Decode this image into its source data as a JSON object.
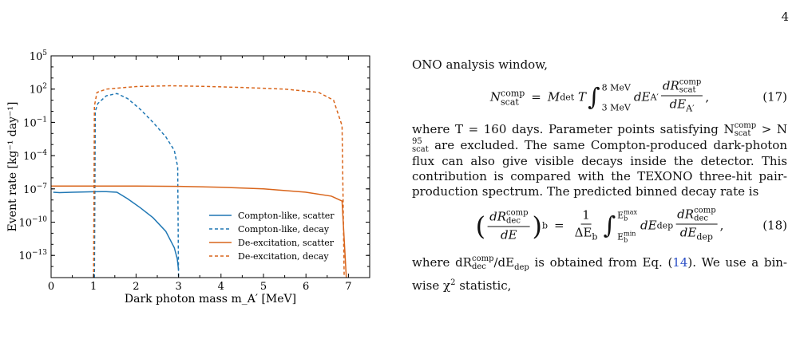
{
  "page_number": "4",
  "chart_data": {
    "type": "line",
    "title": "",
    "xlabel": "Dark photon mass m_A′ [MeV]",
    "ylabel": "Event rate [kg⁻¹ day⁻¹]",
    "xlim": [
      0,
      7.5
    ],
    "ylim_log10": [
      -15,
      5
    ],
    "yscale": "log",
    "x_ticks": [
      "0",
      "1",
      "2",
      "3",
      "4",
      "5",
      "6",
      "7"
    ],
    "y_ticks": [
      {
        "base": "10",
        "exp": "5"
      },
      {
        "base": "10",
        "exp": "2"
      },
      {
        "base": "10",
        "exp": "−1"
      },
      {
        "base": "10",
        "exp": "−4"
      },
      {
        "base": "10",
        "exp": "−7"
      },
      {
        "base": "10",
        "exp": "−10"
      },
      {
        "base": "10",
        "exp": "−13"
      }
    ],
    "legend_position": "lower-right",
    "series": [
      {
        "name": "Compton-like, scatter",
        "color": "#1f77b4",
        "dash": "solid",
        "points": [
          [
            0.05,
            5e-08
          ],
          [
            0.2,
            4.6e-08
          ],
          [
            0.5,
            5e-08
          ],
          [
            1.0,
            5.5e-08
          ],
          [
            1.3,
            5.7e-08
          ],
          [
            1.55,
            5e-08
          ],
          [
            1.8,
            1.3e-08
          ],
          [
            2.1,
            2e-09
          ],
          [
            2.4,
            2.5e-10
          ],
          [
            2.7,
            1.5e-11
          ],
          [
            2.9,
            5e-13
          ],
          [
            2.97,
            5e-14
          ],
          [
            3.0,
            5e-15
          ]
        ]
      },
      {
        "name": "Compton-like, decay",
        "color": "#1f77b4",
        "dash": "dashed",
        "points": [
          [
            1.02,
            1e-15
          ],
          [
            1.04,
            1.0
          ],
          [
            1.1,
            5.0
          ],
          [
            1.3,
            25.0
          ],
          [
            1.55,
            40.0
          ],
          [
            1.8,
            14.0
          ],
          [
            2.1,
            1.5
          ],
          [
            2.4,
            0.1
          ],
          [
            2.7,
            0.005
          ],
          [
            2.9,
            0.0003
          ],
          [
            2.98,
            1e-05
          ],
          [
            3.0,
            1e-15
          ]
        ]
      },
      {
        "name": "De-excitation, scatter",
        "color": "#d9651b",
        "dash": "solid",
        "points": [
          [
            0.0,
            1.8e-07
          ],
          [
            1.0,
            1.8e-07
          ],
          [
            2.0,
            1.8e-07
          ],
          [
            3.0,
            1.7e-07
          ],
          [
            4.0,
            1.4e-07
          ],
          [
            5.0,
            1e-07
          ],
          [
            6.0,
            5e-08
          ],
          [
            6.6,
            2.2e-08
          ],
          [
            6.85,
            8e-09
          ],
          [
            6.95,
            1e-15
          ]
        ]
      },
      {
        "name": "De-excitation, decay",
        "color": "#d9651b",
        "dash": "dashed",
        "points": [
          [
            1.0,
            1e-15
          ],
          [
            1.02,
            3.0
          ],
          [
            1.08,
            50.0
          ],
          [
            1.3,
            100.0
          ],
          [
            2.0,
            170.0
          ],
          [
            2.8,
            200.0
          ],
          [
            3.5,
            180.0
          ],
          [
            4.5,
            140.0
          ],
          [
            5.5,
            100.0
          ],
          [
            6.3,
            50.0
          ],
          [
            6.65,
            10.0
          ],
          [
            6.85,
            0.05
          ],
          [
            6.9,
            1e-15
          ]
        ]
      }
    ]
  },
  "text": {
    "line1": "ONO analysis window,",
    "eq17": {
      "lhs_var": "N",
      "lhs_sup": "comp",
      "lhs_sub": "scat",
      "equals": "=",
      "M": "M",
      "M_sub": "det",
      "T": "T",
      "upper": "8 MeV",
      "lower": "3 MeV",
      "dE": "dE",
      "dE_sub": "A′",
      "num_var": "dR",
      "num_sup": "comp",
      "num_sub": "scat",
      "den_var": "dE",
      "den_sub": "A′",
      "tail": ",",
      "number": "(17)"
    },
    "para1": {
      "p1": "where T = 160 days. Parameter points satisfying N",
      "n1_sup": "comp",
      "n1_sub": "scat",
      "gt": " > N",
      "n2_sup": "95",
      "n2_sub": "scat",
      "p2": " are excluded. The same Compton-produced dark-photon flux can also give visible decays inside the detector. This contribution is compared with the TEXONO three-hit pair-production spectrum. The predicted binned decay rate is"
    },
    "eq18": {
      "l_num": "dR",
      "l_num_sup": "comp",
      "l_num_sub": "dec",
      "l_den": "dE",
      "b_sub": "b",
      "equals": "=",
      "one": "1",
      "delta": "ΔE",
      "delta_sub": "b",
      "upper": "E",
      "upper_sup": "max",
      "upper_sub": "b",
      "lower": "E",
      "lower_sup": "min",
      "lower_sub": "b",
      "dE": "dE",
      "dE_sub": "dep",
      "r_num": "dR",
      "r_num_sup": "comp",
      "r_num_sub": "dec",
      "r_den": "dE",
      "r_den_sub": "dep",
      "tail": ",",
      "number": "(18)"
    },
    "para2": {
      "p1": "where dR",
      "sup": "comp",
      "sub": "dec",
      "p2": "/dE",
      "sub2": "dep",
      "p3": " is obtained from Eq. (",
      "ref": "14",
      "p4": "). We use a bin-wise χ",
      "chi_sup": "2",
      "p5": " statistic,"
    }
  }
}
